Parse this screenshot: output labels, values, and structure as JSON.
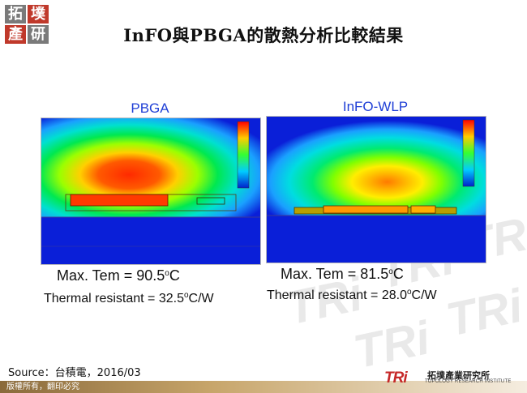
{
  "header": {
    "logo_chars": [
      "拓",
      "墣",
      "產",
      "研"
    ],
    "title": "InFO與PBGA的散熱分析比較結果"
  },
  "panels": [
    {
      "label": "PBGA",
      "max_temp_value": "90.5",
      "thermal_resistance_value": "32.5",
      "max_label": "Max. Tem = ",
      "resistance_label": "Thermal resistant = "
    },
    {
      "label": "InFO-WLP",
      "max_temp_value": "81.5",
      "thermal_resistance_value": "28.0",
      "max_label": "Max. Tem = ",
      "resistance_label": "Thermal resistant = "
    }
  ],
  "units": {
    "degree_symbol": "o",
    "celsius": "C",
    "per_watt": "C/W"
  },
  "footer": {
    "source": "Source：台積電，2016/03",
    "copyright": "版權所有，翻印必究",
    "tri_logo": "TRi",
    "org_name_zh": "拓墣產業研究所",
    "org_name_en": "TOPOLOGY RESEARCH INSTITUTE"
  },
  "colors": {
    "panel_title": "#1f3fd6",
    "logo_red": "#c0392b",
    "logo_gray": "#7a7a7a",
    "tri_red": "#c62828"
  }
}
